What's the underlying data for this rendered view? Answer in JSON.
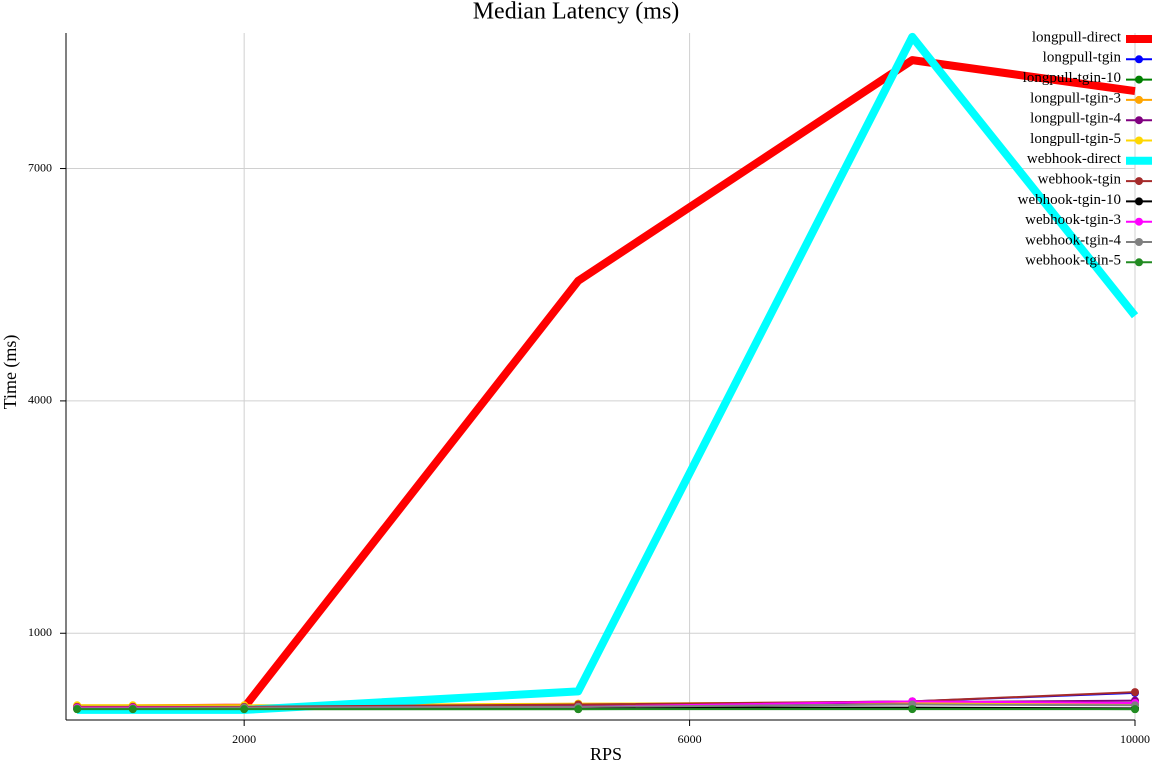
{
  "chart_data": {
    "type": "line",
    "title": "Median Latency (ms)",
    "x_label": "RPS",
    "y_label": "Time (ms)",
    "x": [
      500,
      1000,
      2000,
      5000,
      8000,
      10000
    ],
    "xlim": [
      400,
      10000
    ],
    "xticks": [
      2000,
      6000,
      10000
    ],
    "ylim": [
      -120,
      8750
    ],
    "yticks": [
      1000,
      4000,
      7000
    ],
    "grid": true,
    "legend": "upper right",
    "series": [
      {
        "name": "longpull-direct",
        "color": "#ff0000",
        "linewidth": 8,
        "markers": false,
        "values": [
          30,
          30,
          40,
          5550,
          8400,
          8000
        ]
      },
      {
        "name": "longpull-tgin",
        "color": "#0000ff",
        "linewidth": 2,
        "markers": true,
        "values": [
          40,
          40,
          40,
          70,
          120,
          230
        ]
      },
      {
        "name": "longpull-tgin-10",
        "color": "#008000",
        "linewidth": 2,
        "markers": true,
        "values": [
          20,
          20,
          20,
          20,
          30,
          20
        ]
      },
      {
        "name": "longpull-tgin-3",
        "color": "#ffa500",
        "linewidth": 2,
        "markers": true,
        "values": [
          60,
          60,
          60,
          90,
          100,
          80
        ]
      },
      {
        "name": "longpull-tgin-4",
        "color": "#800080",
        "linewidth": 2,
        "markers": true,
        "values": [
          40,
          40,
          40,
          60,
          110,
          130
        ]
      },
      {
        "name": "longpull-tgin-5",
        "color": "#ffd700",
        "linewidth": 2,
        "markers": true,
        "values": [
          70,
          70,
          70,
          90,
          110,
          90
        ]
      },
      {
        "name": "webhook-direct",
        "color": "#00ffff",
        "linewidth": 8,
        "markers": false,
        "values": [
          10,
          10,
          10,
          250,
          8700,
          5100
        ]
      },
      {
        "name": "webhook-tgin",
        "color": "#a52a2a",
        "linewidth": 2,
        "markers": true,
        "values": [
          50,
          50,
          50,
          80,
          120,
          240
        ]
      },
      {
        "name": "webhook-tgin-10",
        "color": "#000000",
        "linewidth": 2,
        "markers": true,
        "values": [
          30,
          30,
          30,
          40,
          40,
          30
        ]
      },
      {
        "name": "webhook-tgin-3",
        "color": "#ff00ff",
        "linewidth": 2,
        "markers": true,
        "values": [
          40,
          40,
          40,
          50,
          120,
          100
        ]
      },
      {
        "name": "webhook-tgin-4",
        "color": "#808080",
        "linewidth": 2,
        "markers": true,
        "values": [
          30,
          30,
          40,
          50,
          80,
          70
        ]
      },
      {
        "name": "webhook-tgin-5",
        "color": "#228b22",
        "linewidth": 2,
        "markers": true,
        "values": [
          20,
          20,
          20,
          20,
          20,
          20
        ]
      }
    ]
  }
}
